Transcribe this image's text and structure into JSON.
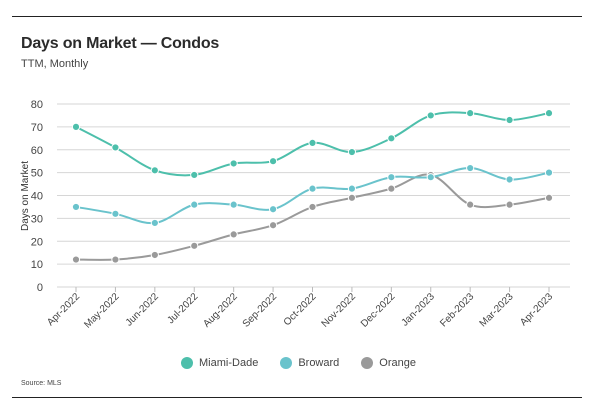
{
  "header": {
    "title": "Days on Market — Condos",
    "subtitle": "TTM, Monthly"
  },
  "footer": {
    "source": "Source: MLS"
  },
  "chart_data": {
    "type": "line",
    "title": "Days on Market — Condos",
    "subtitle": "TTM, Monthly",
    "xlabel": "",
    "ylabel": "Days on Market",
    "ylim": [
      0,
      80
    ],
    "yticks": [
      0,
      10,
      20,
      30,
      40,
      50,
      60,
      70,
      80
    ],
    "grid": true,
    "legend_position": "bottom",
    "categories": [
      "Apr-2022",
      "May-2022",
      "Jun-2022",
      "Jul-2022",
      "Aug-2022",
      "Sep-2022",
      "Oct-2022",
      "Nov-2022",
      "Dec-2022",
      "Jan-2023",
      "Feb-2023",
      "Mar-2023",
      "Apr-2023"
    ],
    "series": [
      {
        "name": "Miami-Dade",
        "color": "#4dbfab",
        "values": [
          70,
          61,
          51,
          49,
          54,
          55,
          63,
          59,
          65,
          75,
          76,
          73,
          76
        ]
      },
      {
        "name": "Broward",
        "color": "#6ac3cc",
        "values": [
          35,
          32,
          28,
          36,
          36,
          34,
          43,
          43,
          48,
          48,
          52,
          47,
          50
        ]
      },
      {
        "name": "Orange",
        "color": "#9a9a9a",
        "values": [
          12,
          12,
          14,
          18,
          23,
          27,
          35,
          39,
          43,
          49,
          36,
          36,
          39
        ]
      }
    ]
  }
}
